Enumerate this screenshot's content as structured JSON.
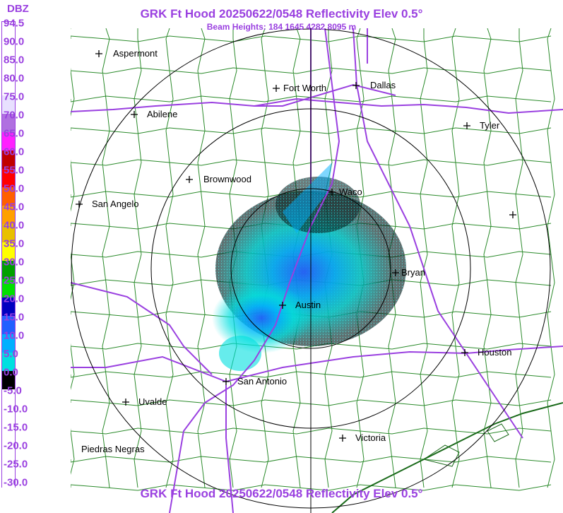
{
  "header": {
    "title": "GRK Ft Hood 20250622/0548 Reflectivity Elev 0.5°",
    "beam_heights": "Beam Heights: 184 1645 4282 8095 m",
    "footer_title": "GRK Ft Hood 20250622/0548 Reflectivity Elev 0.5°"
  },
  "legend": {
    "unit": "DBZ",
    "labels": [
      "94.5",
      "90.0",
      "85.0",
      "80.0",
      "75.0",
      "70.0",
      "65.0",
      "60.0",
      "55.0",
      "50.0",
      "45.0",
      "40.0",
      "35.0",
      "30.0",
      "25.0",
      "20.0",
      "15.0",
      "10.0",
      "5.0",
      "0.0",
      "-5.0",
      "-10.0",
      "-15.0",
      "-20.0",
      "-25.0",
      "-30.0"
    ],
    "colors": [
      "#ffffff",
      "#ffffff",
      "#ffffff",
      "#ffffff",
      "#e8e0ff",
      "#b070e0",
      "#ff20ff",
      "#c00000",
      "#ff0000",
      "#ff6000",
      "#ffa000",
      "#e8c000",
      "#ffff00",
      "#00a000",
      "#00e000",
      "#0000c0",
      "#2060ff",
      "#00b0ff",
      "#00e0e0",
      "#000000",
      "#ffffff",
      "#ffffff",
      "#ffffff",
      "#ffffff",
      "#ffffff",
      "#ffffff"
    ]
  },
  "cities": [
    {
      "name": "Aspermont",
      "label": "Aspermont"
    },
    {
      "name": "Fort Worth",
      "label": "Fort Worth"
    },
    {
      "name": "Dallas",
      "label": "Dallas"
    },
    {
      "name": "Abilene",
      "label": "Abilene"
    },
    {
      "name": "Tyler",
      "label": "Tyler"
    },
    {
      "name": "Brownwood",
      "label": "Brownwood"
    },
    {
      "name": "Waco",
      "label": "Waco"
    },
    {
      "name": "San Angelo",
      "label": "San Angelo"
    },
    {
      "name": "Bryan",
      "label": "Bryan"
    },
    {
      "name": "Austin",
      "label": "Austin"
    },
    {
      "name": "Houston",
      "label": "Houston"
    },
    {
      "name": "San Antonio",
      "label": "San Antonio"
    },
    {
      "name": "Uvalde",
      "label": "Uvalde"
    },
    {
      "name": "Victoria",
      "label": "Victoria"
    },
    {
      "name": "Piedras Negras",
      "label": "Piedras Negras"
    },
    {
      "name": "Unlabeled",
      "label": ""
    }
  ],
  "colors": {
    "title": "#9a40e0",
    "county_lines": "#2a8a2a",
    "highways": "#9a40e0",
    "range_rings": "#000000"
  }
}
